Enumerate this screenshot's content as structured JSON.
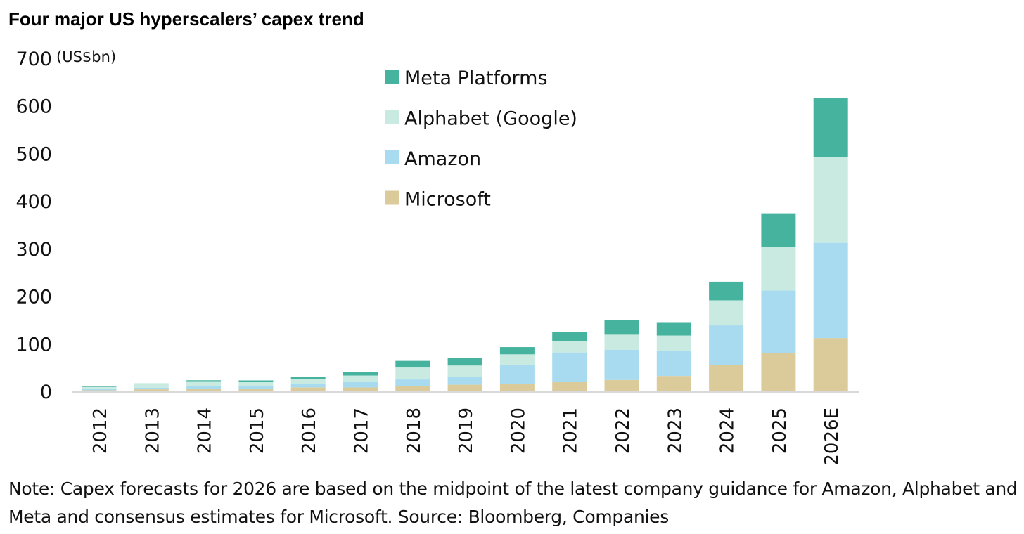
{
  "chart_data": {
    "type": "bar",
    "stacked": true,
    "title": "Four major US hyperscalers’ capex trend",
    "ylabel": "(US$bn)",
    "xlabel": "",
    "ylim": [
      0,
      700
    ],
    "yticks": [
      0,
      100,
      200,
      300,
      400,
      500,
      600,
      700
    ],
    "grid": false,
    "legend_position": "top-center",
    "categories": [
      "2012",
      "2013",
      "2014",
      "2015",
      "2016",
      "2017",
      "2018",
      "2019",
      "2020",
      "2021",
      "2022",
      "2023",
      "2024",
      "2025",
      "2026E"
    ],
    "series": [
      {
        "name": "Microsoft",
        "color": "#dccb9a",
        "values": [
          2.3,
          4.3,
          5.5,
          5.9,
          8.3,
          8.1,
          11.6,
          13.9,
          15.4,
          20.6,
          23.9,
          32.3,
          55.7,
          80,
          112
        ]
      },
      {
        "name": "Amazon",
        "color": "#a8dbef",
        "values": [
          3.8,
          3.4,
          4.9,
          4.6,
          7.8,
          11.9,
          13.4,
          16.9,
          40.1,
          61.1,
          63.6,
          52.7,
          83,
          132,
          200
        ]
      },
      {
        "name": "Alphabet (Google)",
        "color": "#c8eae1",
        "values": [
          3.3,
          7.4,
          11,
          9.9,
          10.2,
          13.2,
          25.1,
          23.5,
          22.3,
          24.6,
          31.5,
          32.3,
          52.5,
          91,
          180
        ]
      },
      {
        "name": "Meta Platforms",
        "color": "#45b39d",
        "values": [
          1.2,
          1.4,
          1.8,
          2.5,
          4.5,
          6.7,
          13.9,
          15.1,
          15.1,
          18.6,
          31.4,
          28.1,
          39.2,
          71,
          125
        ]
      }
    ],
    "note": "Note: Capex forecasts for 2026 are based on the midpoint of the latest company guidance for Amazon, Alphabet and Meta and consensus estimates for Microsoft. Source: Bloomberg, Companies"
  }
}
